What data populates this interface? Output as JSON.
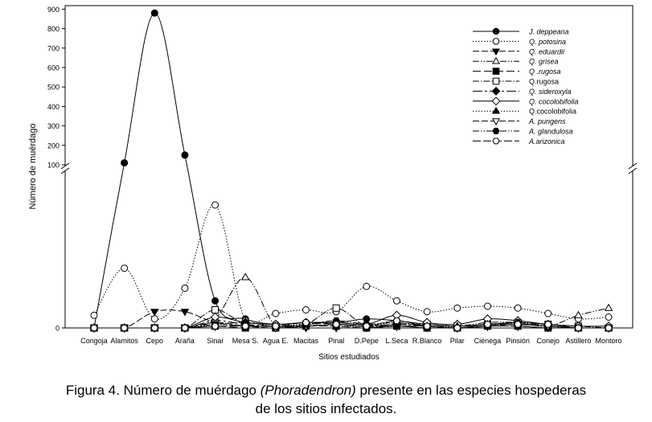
{
  "chart_data": {
    "type": "line",
    "ylabel": "Número de muérdago",
    "xlabel": "Sitios estudiados",
    "categories": [
      "Congoja",
      "Alamitos",
      "Cepo",
      "Araña",
      "Sinaí",
      "Mesa S.",
      "Agua E.",
      "Macitas",
      "Pinal",
      "D.Pepe",
      "L.Seca",
      "R.Blanco",
      "Pilar",
      "Ciénega",
      "Pinsión",
      "Conejo",
      "Astillero",
      "Montoro"
    ],
    "y_ticks_upper": [
      100,
      200,
      300,
      400,
      500,
      600,
      700,
      800,
      900
    ],
    "y_ticks_lower": [
      0
    ],
    "axis_break": true,
    "legend_position": "top-right",
    "series": [
      {
        "name": "J. deppeana",
        "italic": true,
        "values": [
          0,
          110,
          880,
          150,
          15,
          5,
          2,
          3,
          3,
          5,
          4,
          2,
          1,
          2,
          2,
          1,
          0,
          0
        ]
      },
      {
        "name": "Q. potosina",
        "italic": true,
        "values": [
          7,
          33,
          5,
          22,
          68,
          4,
          8,
          10,
          9,
          23,
          15,
          9,
          11,
          12,
          11,
          8,
          5,
          6
        ]
      },
      {
        "name": "Q. eduardii",
        "italic": true,
        "values": [
          0,
          0,
          9,
          9,
          3,
          1,
          1,
          0,
          0,
          0,
          1,
          0,
          0,
          1,
          1,
          0,
          0,
          0
        ]
      },
      {
        "name": "Q. grisea",
        "italic": true,
        "values": [
          0,
          0,
          0,
          0,
          5,
          28,
          1,
          2,
          3,
          2,
          3,
          1,
          1,
          3,
          3,
          1,
          7,
          11
        ]
      },
      {
        "name": "Q .rugosa",
        "italic": true,
        "values": [
          0,
          0,
          0,
          0,
          1,
          0,
          0,
          1,
          1,
          0,
          1,
          0,
          0,
          1,
          1,
          0,
          0,
          0
        ]
      },
      {
        "name": "Q.rugosa",
        "italic": false,
        "values": [
          0,
          0,
          0,
          0,
          10,
          2,
          1,
          2,
          11,
          1,
          2,
          2,
          1,
          2,
          3,
          2,
          1,
          0
        ]
      },
      {
        "name": "Q. sideroxyla",
        "italic": true,
        "values": [
          0,
          0,
          0,
          0,
          4,
          2,
          1,
          1,
          2,
          1,
          2,
          1,
          0,
          2,
          2,
          1,
          0,
          0
        ]
      },
      {
        "name": "Q. cocolobifolia",
        "italic": true,
        "values": [
          0,
          0,
          0,
          0,
          6,
          3,
          2,
          3,
          3,
          2,
          7,
          3,
          2,
          5,
          4,
          2,
          1,
          1
        ]
      },
      {
        "name": "Q.cocolobifolia",
        "italic": false,
        "values": [
          0,
          0,
          0,
          0,
          2,
          1,
          1,
          2,
          1,
          1,
          3,
          1,
          1,
          2,
          3,
          1,
          0,
          0
        ]
      },
      {
        "name": "A. pungens",
        "italic": true,
        "values": [
          0,
          0,
          0,
          0,
          3,
          1,
          0,
          1,
          2,
          1,
          1,
          1,
          0,
          1,
          2,
          1,
          0,
          0
        ]
      },
      {
        "name": "A. glandulosa",
        "italic": true,
        "values": [
          0,
          0,
          0,
          0,
          2,
          3,
          1,
          2,
          4,
          2,
          1,
          1,
          0,
          1,
          3,
          2,
          0,
          0
        ]
      },
      {
        "name": "A.arizonica",
        "italic": true,
        "values": [
          0,
          0,
          0,
          0,
          1,
          1,
          1,
          3,
          2,
          1,
          4,
          1,
          0,
          2,
          2,
          2,
          0,
          0
        ]
      }
    ]
  },
  "caption": {
    "prefix": "Figura 4. Número de muérdago ",
    "italic": "(Phoradendron)",
    "suffix": " presente en las especies hospederas",
    "line2": "de los sitios infectados."
  }
}
